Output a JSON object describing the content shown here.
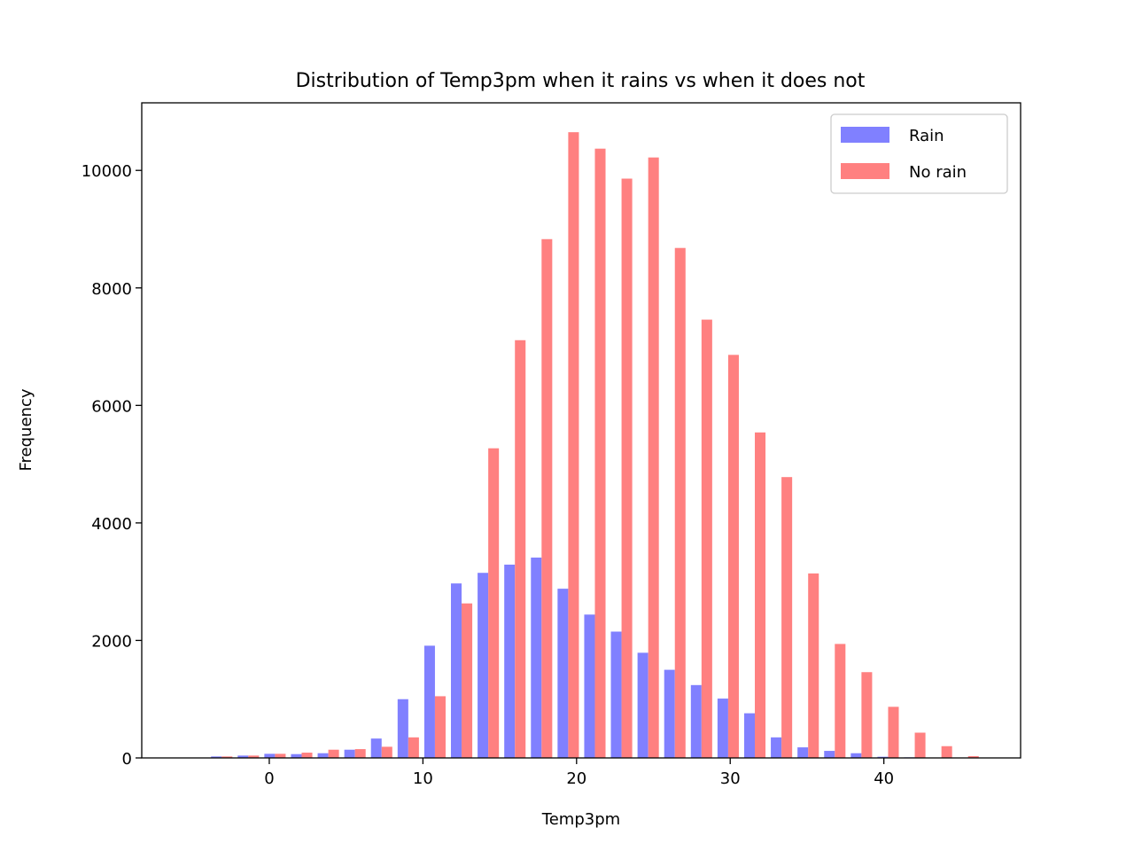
{
  "chart_data": {
    "type": "bar",
    "title": "Distribution of Temp3pm when it rains vs when it does not",
    "xlabel": "Temp3pm",
    "ylabel": "Frequency",
    "xlim": [
      -8.3,
      48.9
    ],
    "ylim": [
      0,
      11150
    ],
    "xticks": [
      0,
      10,
      20,
      30,
      40
    ],
    "yticks": [
      0,
      2000,
      4000,
      6000,
      8000,
      10000
    ],
    "grid": false,
    "legend_position": "top-right",
    "bin_width": 1.735,
    "bin_starts": [
      -5.7,
      -3.965,
      -2.23,
      -0.495,
      1.24,
      2.975,
      4.71,
      6.445,
      8.18,
      9.915,
      11.65,
      13.385,
      15.12,
      16.855,
      18.59,
      20.325,
      22.06,
      23.795,
      25.53,
      27.265,
      29.0,
      30.735,
      32.47,
      34.205,
      35.94,
      37.675,
      39.41,
      41.145,
      42.88,
      44.615
    ],
    "series": [
      {
        "name": "Rain",
        "color": "#8080ff",
        "values": [
          5,
          25,
          40,
          70,
          65,
          80,
          140,
          330,
          1000,
          1910,
          2970,
          3150,
          3290,
          3410,
          2880,
          2440,
          2150,
          1790,
          1500,
          1240,
          1010,
          760,
          350,
          180,
          120,
          80,
          20,
          10,
          5,
          2
        ]
      },
      {
        "name": "No rain",
        "color": "#ff8080",
        "values": [
          5,
          25,
          40,
          70,
          90,
          140,
          150,
          190,
          350,
          1050,
          2630,
          5270,
          7110,
          8830,
          10650,
          10370,
          9860,
          10220,
          8680,
          7460,
          6860,
          5540,
          4780,
          3140,
          1940,
          1460,
          870,
          430,
          200,
          30
        ]
      }
    ]
  }
}
